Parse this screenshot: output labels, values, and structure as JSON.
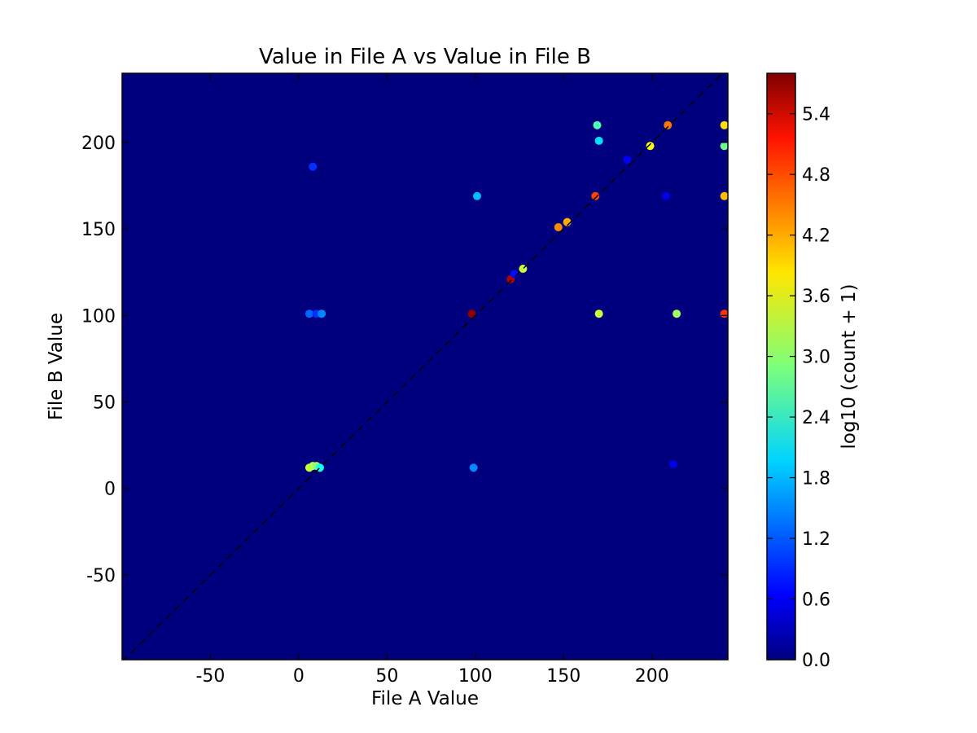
{
  "chart_data": {
    "type": "heatmap",
    "title": "Value in File A vs Value in File B",
    "xlabel": "File A Value",
    "ylabel": "File B Value",
    "xlim": [
      -100,
      243
    ],
    "ylim": [
      -99,
      240
    ],
    "xticks": [
      -50,
      0,
      50,
      100,
      150,
      200
    ],
    "yticks": [
      -50,
      0,
      50,
      100,
      150,
      200
    ],
    "grid": false,
    "background_color": "#00007f",
    "reference_line": {
      "style": "dashed",
      "color": "#000000",
      "from": [
        -100,
        -100
      ],
      "to": [
        240,
        240
      ]
    },
    "colorbar": {
      "label": "log10 (count + 1)",
      "range": [
        0,
        5.8
      ],
      "ticks": [
        "0.0",
        "0.6",
        "1.2",
        "1.8",
        "2.4",
        "3.0",
        "3.6",
        "4.2",
        "4.8",
        "5.4"
      ],
      "colormap": "jet"
    },
    "points": [
      {
        "x": 6,
        "y": 12,
        "v": 3.3
      },
      {
        "x": 8,
        "y": 13,
        "v": 3.2
      },
      {
        "x": 10,
        "y": 13,
        "v": 3.0
      },
      {
        "x": 12,
        "y": 12,
        "v": 2.3
      },
      {
        "x": 6,
        "y": 101,
        "v": 1.3
      },
      {
        "x": 10,
        "y": 101,
        "v": 1.0
      },
      {
        "x": 13,
        "y": 101,
        "v": 1.5
      },
      {
        "x": 8,
        "y": 186,
        "v": 1.0
      },
      {
        "x": 98,
        "y": 101,
        "v": 5.7
      },
      {
        "x": 99,
        "y": 12,
        "v": 1.5
      },
      {
        "x": 101,
        "y": 169,
        "v": 1.8
      },
      {
        "x": 120,
        "y": 121,
        "v": 5.5
      },
      {
        "x": 122,
        "y": 124,
        "v": 0.8
      },
      {
        "x": 127,
        "y": 127,
        "v": 3.3
      },
      {
        "x": 147,
        "y": 151,
        "v": 4.3
      },
      {
        "x": 152,
        "y": 154,
        "v": 4.1
      },
      {
        "x": 168,
        "y": 169,
        "v": 4.7
      },
      {
        "x": 169,
        "y": 210,
        "v": 2.6
      },
      {
        "x": 170,
        "y": 201,
        "v": 2.0
      },
      {
        "x": 170,
        "y": 101,
        "v": 3.3
      },
      {
        "x": 186,
        "y": 190,
        "v": 0.7
      },
      {
        "x": 199,
        "y": 198,
        "v": 3.6
      },
      {
        "x": 208,
        "y": 169,
        "v": 0.6
      },
      {
        "x": 209,
        "y": 210,
        "v": 4.4
      },
      {
        "x": 212,
        "y": 14,
        "v": 0.6
      },
      {
        "x": 214,
        "y": 101,
        "v": 3.1
      },
      {
        "x": 241,
        "y": 101,
        "v": 4.8
      },
      {
        "x": 241,
        "y": 210,
        "v": 3.8
      },
      {
        "x": 241,
        "y": 169,
        "v": 4.0
      },
      {
        "x": 241,
        "y": 198,
        "v": 2.8
      }
    ]
  }
}
